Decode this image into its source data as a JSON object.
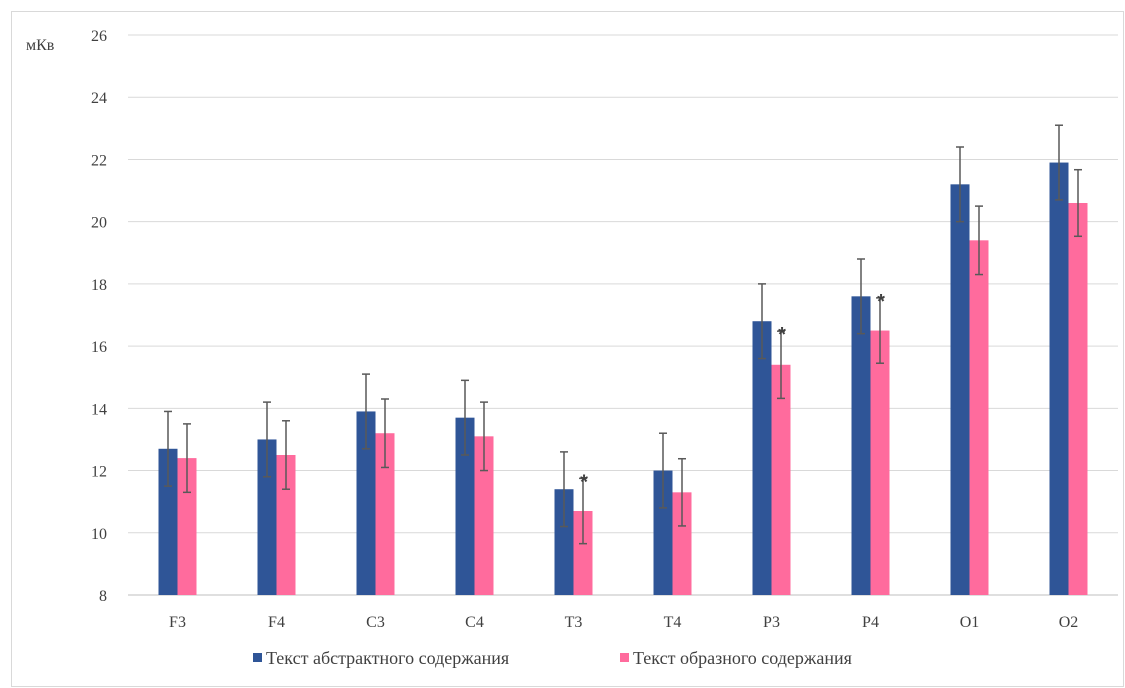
{
  "chart_data": {
    "type": "bar",
    "ylabel": "мКв",
    "ylim": [
      8,
      26
    ],
    "ytick_step": 2,
    "grid": true,
    "legend_position": "bottom",
    "categories": [
      "F3",
      "F4",
      "C3",
      "C4",
      "T3",
      "T4",
      "P3",
      "P4",
      "O1",
      "O2"
    ],
    "series": [
      {
        "name": "Текст абстрактного содержания",
        "color": "#2f5597",
        "values": [
          12.7,
          13.0,
          13.9,
          13.7,
          11.4,
          12.0,
          16.8,
          17.6,
          21.2,
          21.9
        ],
        "errors": [
          1.2,
          1.2,
          1.2,
          1.2,
          1.2,
          1.2,
          1.2,
          1.2,
          1.2,
          1.2
        ]
      },
      {
        "name": "Текст образного содержания",
        "color": "#ff6b9d",
        "values": [
          12.4,
          12.5,
          13.2,
          13.1,
          10.7,
          11.3,
          15.4,
          16.5,
          19.4,
          20.6
        ],
        "errors": [
          1.1,
          1.1,
          1.1,
          1.1,
          1.05,
          1.08,
          1.08,
          1.05,
          1.1,
          1.07
        ]
      }
    ],
    "significance_marker": "*",
    "significant_categories": [
      "T3",
      "P3",
      "P4"
    ]
  }
}
